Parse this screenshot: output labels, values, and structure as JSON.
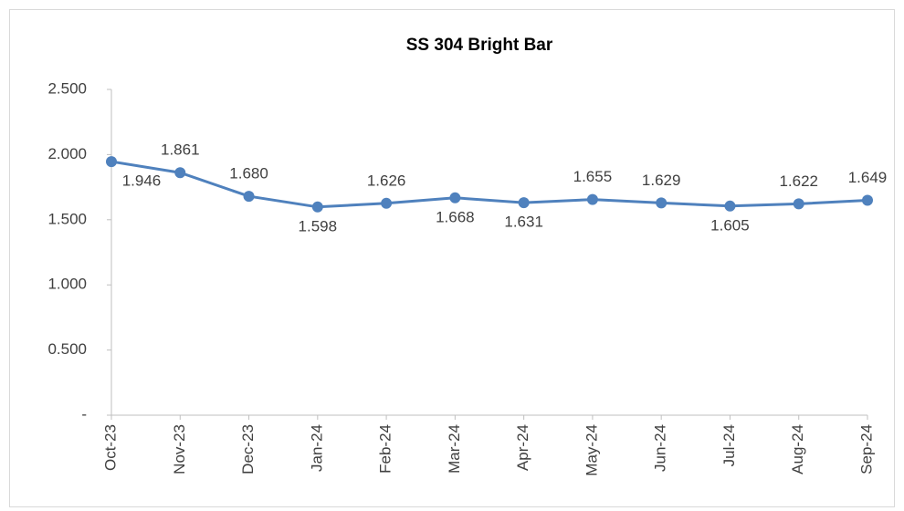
{
  "chart_data": {
    "type": "line",
    "title": "SS 304 Bright Bar",
    "categories": [
      "Oct-23",
      "Nov-23",
      "Dec-23",
      "Jan-24",
      "Feb-24",
      "Mar-24",
      "Apr-24",
      "May-24",
      "Jun-24",
      "Jul-24",
      "Aug-24",
      "Sep-24"
    ],
    "series": [
      {
        "name": "SS 304 Bright Bar",
        "color": "#4f81bd",
        "values": [
          1.946,
          1.861,
          1.68,
          1.598,
          1.626,
          1.668,
          1.631,
          1.655,
          1.629,
          1.605,
          1.622,
          1.649
        ],
        "value_labels": [
          "1.946",
          "1.861",
          "1.680",
          "1.598",
          "1.626",
          "1.668",
          "1.631",
          "1.655",
          "1.629",
          "1.605",
          "1.622",
          "1.649"
        ]
      }
    ],
    "ylim": [
      0,
      2.5
    ],
    "yticks": [
      {
        "value": 0,
        "label": "-"
      },
      {
        "value": 0.5,
        "label": "0.500"
      },
      {
        "value": 1,
        "label": "1.000"
      },
      {
        "value": 1.5,
        "label": "1.500"
      },
      {
        "value": 2,
        "label": "2.000"
      },
      {
        "value": 2.5,
        "label": "2.500"
      }
    ],
    "grid": false
  }
}
